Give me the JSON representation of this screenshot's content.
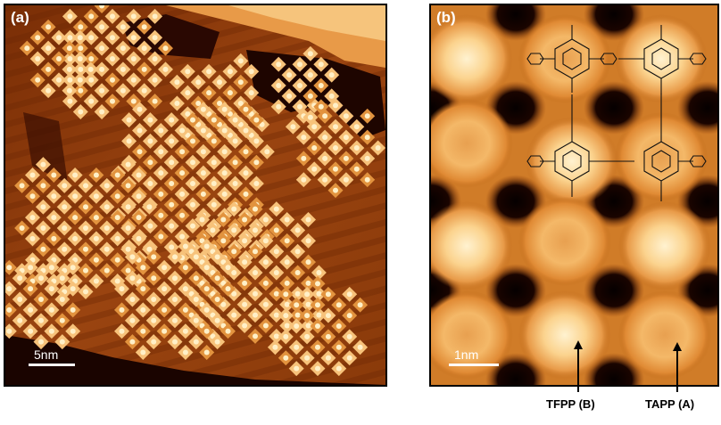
{
  "panels": {
    "a": {
      "label": "(a)",
      "scale_text": "5nm"
    },
    "b": {
      "label": "(b)",
      "scale_text": "1nm"
    }
  },
  "annotations": {
    "tfpp": "TFPP (B)",
    "tapp": "TAPP (A)"
  },
  "colors": {
    "background": "#8a3a08",
    "dark": "#1a0400",
    "bright": "#fde6b0",
    "mid": "#c86a1c"
  }
}
